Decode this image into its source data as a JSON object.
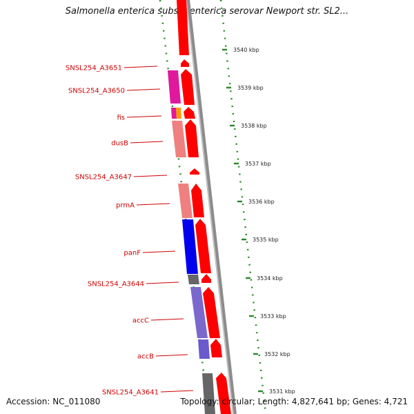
{
  "header": {
    "title": "Salmonella enterica subsp. enterica serovar Newport str. SL2..."
  },
  "footer": {
    "accession": "Accession: NC_011080",
    "topology": "Topology: circular; Length: 4,827,641 bp; Genes: 4,721"
  },
  "colors": {
    "cds_red": "#ff0000",
    "backbone_gray": "#8c8c8c",
    "gc_dots": "#2a8a2a",
    "label_red": "#cc0000",
    "pink": "#f08080",
    "magenta": "#e0189c",
    "blue": "#0000ee",
    "slate": "#7b68cc",
    "dark_gray": "#666666",
    "orange": "#ff9900"
  },
  "gene_labels": [
    "SNSL254_A3651",
    "SNSL254_A3650",
    "fis",
    "dusB",
    "SNSL254_A3647",
    "prmA",
    "panF",
    "SNSL254_A3644",
    "accC",
    "accB",
    "SNSL254_A3641"
  ],
  "kbp_ticks": [
    "3540 kbp",
    "3539 kbp",
    "3538 kbp",
    "3537 kbp",
    "3536 kbp",
    "3535 kbp",
    "3534 kbp",
    "3533 kbp",
    "3532 kbp",
    "3531 kbp"
  ]
}
